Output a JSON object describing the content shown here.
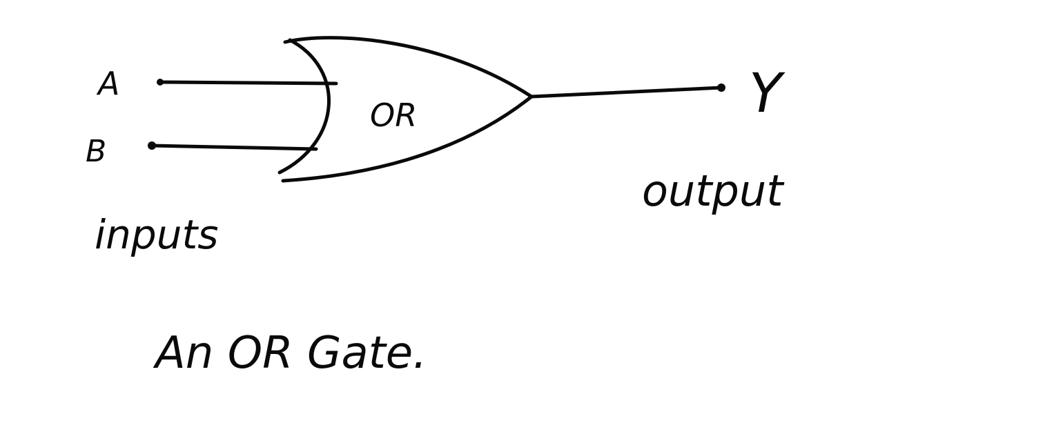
{
  "diagram": {
    "gate_label": "OR",
    "inputs": [
      {
        "label": "A"
      },
      {
        "label": "B"
      }
    ],
    "output": {
      "label": "Y"
    },
    "inputs_caption": "inputs",
    "output_caption": "output",
    "caption": "An OR Gate."
  },
  "colors": {
    "ink": "#0a0a0a",
    "paper": "#ffffff"
  }
}
